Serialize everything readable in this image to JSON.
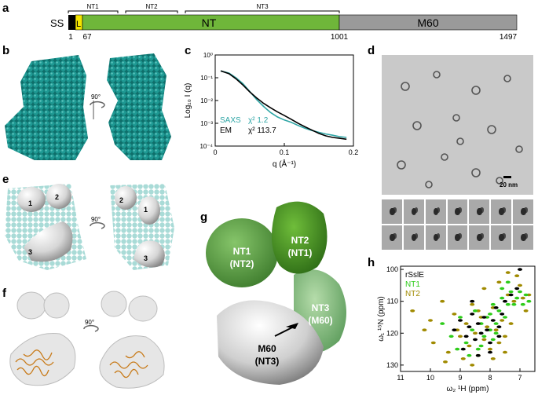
{
  "panels": {
    "a": "a",
    "b": "b",
    "c": "c",
    "d": "d",
    "e": "e",
    "f": "f",
    "g": "g",
    "h": "h"
  },
  "domain_bar": {
    "ss_label": "SS",
    "l_label": "L",
    "nt_label": "NT",
    "m60_label": "M60",
    "brackets": [
      "NT1",
      "NT2",
      "NT3"
    ],
    "positions": [
      "1",
      "67",
      "1001",
      "1497"
    ],
    "colors": {
      "ss": "#000000",
      "l": "#f5e400",
      "nt": "#6fb63a",
      "m60": "#9a9a9a"
    }
  },
  "rotation_label": "90°",
  "envelope_labels": [
    "1",
    "2",
    "2",
    "1",
    "3",
    "3"
  ],
  "scale_bar": "20 nm",
  "map_g": {
    "nt2": [
      "NT2",
      "(NT1)"
    ],
    "nt1": [
      "NT1",
      "(NT2)"
    ],
    "nt3": [
      "NT3",
      "(M60)"
    ],
    "m60": [
      "M60",
      "(NT3)"
    ]
  },
  "chart_data": [
    {
      "type": "line",
      "panel": "c",
      "xlabel": "q (Å⁻¹)",
      "ylabel": "Log₁₀ I (q)",
      "xlim": [
        0,
        0.2
      ],
      "ylim": [
        0.0001,
        1
      ],
      "yscale": "log",
      "xticks": [
        "0",
        "0.1",
        "0.2"
      ],
      "yticks": [
        "10⁰",
        "10⁻¹",
        "10⁻²",
        "10⁻³",
        "10⁻⁴"
      ],
      "legend": [
        {
          "name": "SAXS",
          "chi": "χ² 1.2",
          "color": "#2fa6a6"
        },
        {
          "name": "EM",
          "chi": "χ² 113.7",
          "color": "#000000"
        }
      ],
      "series": [
        {
          "name": "SAXS",
          "color": "#2fa6a6",
          "x": [
            0.008,
            0.02,
            0.03,
            0.04,
            0.05,
            0.06,
            0.07,
            0.08,
            0.09,
            0.1,
            0.11,
            0.12,
            0.13,
            0.14,
            0.15,
            0.16,
            0.17,
            0.18,
            0.19
          ],
          "y": [
            0.2,
            0.16,
            0.1,
            0.055,
            0.025,
            0.011,
            0.0055,
            0.003,
            0.0019,
            0.0014,
            0.0011,
            0.0008,
            0.0006,
            0.00048,
            0.0004,
            0.00034,
            0.0003,
            0.00026,
            0.00024
          ]
        },
        {
          "name": "EM",
          "color": "#000000",
          "x": [
            0.008,
            0.02,
            0.03,
            0.04,
            0.05,
            0.06,
            0.07,
            0.08,
            0.09,
            0.1,
            0.11,
            0.12,
            0.13,
            0.14,
            0.15,
            0.16,
            0.17,
            0.18,
            0.19
          ],
          "y": [
            0.2,
            0.15,
            0.09,
            0.048,
            0.024,
            0.013,
            0.0075,
            0.0048,
            0.0032,
            0.0022,
            0.0015,
            0.001,
            0.0007,
            0.0005,
            0.00036,
            0.00028,
            0.00024,
            0.00022,
            0.0002
          ]
        }
      ]
    },
    {
      "type": "scatter",
      "panel": "h",
      "xlabel": "ω₂ ¹H (ppm)",
      "ylabel": "ω₁ ¹⁵N (ppm)",
      "xlim": [
        11,
        6.5
      ],
      "ylim": [
        132,
        99
      ],
      "xticks": [
        "11",
        "10",
        "9",
        "8",
        "7"
      ],
      "yticks": [
        "100",
        "110",
        "120",
        "130"
      ],
      "legend": [
        {
          "name": "rSslE",
          "color": "#000000"
        },
        {
          "name": "NT1",
          "color": "#2ecc1a"
        },
        {
          "name": "NT2",
          "color": "#a08a00"
        }
      ],
      "series": [
        {
          "name": "NT2",
          "color": "#a08a00",
          "x": [
            10.6,
            10.2,
            9.9,
            9.6,
            9.4,
            9.2,
            9.0,
            8.9,
            8.8,
            8.7,
            8.6,
            8.5,
            8.4,
            8.3,
            8.2,
            8.1,
            8.0,
            7.9,
            7.8,
            7.7,
            7.6,
            7.5,
            7.4,
            7.3,
            7.2,
            7.0,
            6.9,
            6.8,
            9.5,
            8.6,
            7.9,
            7.1,
            10.0,
            8.2,
            7.5,
            9.1,
            8.4,
            7.7,
            6.7,
            7.4
          ],
          "y": [
            113,
            119,
            123,
            110,
            126,
            114,
            121,
            128,
            117,
            124,
            111,
            120,
            127,
            115,
            122,
            118,
            125,
            112,
            119,
            123,
            116,
            121,
            108,
            117,
            110,
            105,
            109,
            113,
            129,
            130,
            128,
            102,
            116,
            106,
            126,
            119,
            113,
            104,
            108,
            101
          ]
        },
        {
          "name": "NT1",
          "color": "#2ecc1a",
          "x": [
            9.6,
            9.3,
            9.0,
            8.8,
            8.6,
            8.5,
            8.4,
            8.3,
            8.2,
            8.1,
            8.0,
            7.9,
            7.8,
            7.7,
            7.6,
            7.5,
            7.4,
            7.3,
            7.2,
            7.1,
            7.0,
            6.9,
            6.8,
            6.7,
            8.7,
            8.3,
            7.9,
            7.6,
            9.1,
            8.0,
            7.4,
            7.8
          ],
          "y": [
            117,
            121,
            115,
            123,
            119,
            113,
            125,
            117,
            121,
            115,
            119,
            111,
            117,
            113,
            109,
            115,
            111,
            107,
            111,
            109,
            107,
            111,
            108,
            110,
            127,
            124,
            122,
            106,
            125,
            114,
            104,
            120
          ]
        },
        {
          "name": "rSslE",
          "color": "#000000",
          "x": [
            9.2,
            9.0,
            8.8,
            8.7,
            8.6,
            8.5,
            8.4,
            8.3,
            8.2,
            8.1,
            8.0,
            7.9,
            7.8,
            7.7,
            7.6,
            7.5,
            7.3,
            7.1,
            8.9,
            8.4,
            8.0,
            7.7,
            7.0,
            8.6
          ],
          "y": [
            119,
            116,
            121,
            118,
            114,
            122,
            117,
            120,
            115,
            119,
            123,
            116,
            112,
            118,
            114,
            110,
            108,
            106,
            125,
            127,
            126,
            121,
            100,
            110
          ]
        }
      ]
    }
  ]
}
